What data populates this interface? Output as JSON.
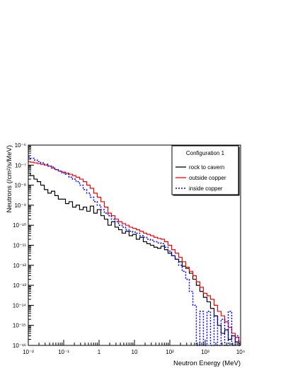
{
  "chart_data": {
    "type": "line",
    "title": "",
    "xlabel": "Neutron Energy (MeV)",
    "ylabel": "Neutrons (/cm²/s/MeV)",
    "xscale": "log",
    "yscale": "log",
    "xlim": [
      0.01,
      10000
    ],
    "ylim": [
      1e-16,
      1e-06
    ],
    "x_tick_labels": [
      "10⁻²",
      "10⁻¹",
      "1",
      "10",
      "10²",
      "10³",
      "10⁴"
    ],
    "y_tick_labels": [
      "10⁻¹⁶",
      "10⁻¹⁵",
      "10⁻¹⁴",
      "10⁻¹³",
      "10⁻¹²",
      "10⁻¹¹",
      "10⁻¹⁰",
      "10⁻⁹",
      "10⁻⁸",
      "10⁻⁷",
      "10⁻⁶"
    ],
    "grid": false,
    "legend": {
      "placement": "top-right",
      "title": "Configuration 1",
      "entries": [
        "rock to cavern",
        "outside copper",
        "inside copper"
      ]
    },
    "series": [
      {
        "name": "rock to cavern",
        "color": "#000000",
        "style": "solid-step",
        "x": [
          0.01,
          0.013,
          0.016,
          0.02,
          0.025,
          0.032,
          0.04,
          0.05,
          0.063,
          0.079,
          0.1,
          0.126,
          0.158,
          0.2,
          0.25,
          0.316,
          0.4,
          0.5,
          0.63,
          0.79,
          1.0,
          1.26,
          1.58,
          2.0,
          2.5,
          3.16,
          4.0,
          5.0,
          6.3,
          7.9,
          10,
          12.6,
          15.8,
          20,
          25,
          31.6,
          40,
          50,
          63,
          79,
          100,
          126,
          158,
          200,
          250,
          316,
          400,
          500,
          630,
          790,
          1000,
          1260,
          1580,
          2000,
          2500,
          3160,
          4000,
          5000,
          6300,
          7900,
          10000
        ],
        "y": [
          4e-08,
          3e-08,
          2e-08,
          1.5e-08,
          1e-08,
          6e-09,
          4e-09,
          5e-09,
          3e-09,
          2e-09,
          2e-09,
          1.2e-09,
          1.5e-09,
          8e-10,
          1e-09,
          6e-10,
          8e-10,
          5e-10,
          9e-10,
          4e-10,
          6e-10,
          3e-10,
          2e-10,
          1e-10,
          1.5e-10,
          8e-11,
          6e-11,
          4e-11,
          5e-11,
          3e-11,
          3.5e-11,
          2e-11,
          2.5e-11,
          1.5e-11,
          1.2e-11,
          1e-11,
          8e-12,
          7e-12,
          9e-12,
          6e-12,
          4e-12,
          3e-12,
          2e-12,
          1.5e-12,
          9e-13,
          7e-13,
          4e-13,
          2e-13,
          1e-13,
          5e-14,
          2.5e-14,
          1.5e-14,
          7e-15,
          3e-15,
          1e-15,
          4e-16,
          6e-16,
          2e-16,
          3e-16,
          1.5e-16,
          1.2e-16
        ]
      },
      {
        "name": "outside copper",
        "color": "#ff0000",
        "style": "solid-step",
        "x": [
          0.01,
          0.013,
          0.016,
          0.02,
          0.025,
          0.032,
          0.04,
          0.05,
          0.063,
          0.079,
          0.1,
          0.126,
          0.158,
          0.2,
          0.25,
          0.316,
          0.4,
          0.5,
          0.63,
          0.79,
          1.0,
          1.26,
          1.58,
          2.0,
          2.5,
          3.16,
          4.0,
          5.0,
          6.3,
          7.9,
          10,
          12.6,
          15.8,
          20,
          25,
          31.6,
          40,
          50,
          63,
          79,
          100,
          126,
          158,
          200,
          250,
          316,
          400,
          500,
          630,
          790,
          1000,
          1260,
          1580,
          2000,
          2500,
          3160,
          4000,
          5000,
          6300,
          7900,
          10000
        ],
        "y": [
          1.5e-07,
          1.4e-07,
          1.3e-07,
          1.2e-07,
          1.1e-07,
          1e-07,
          9e-08,
          7e-08,
          6e-08,
          5e-08,
          4.5e-08,
          4e-08,
          3.5e-08,
          3e-08,
          2.5e-08,
          2e-08,
          1.5e-08,
          1e-08,
          7e-09,
          4e-09,
          2.5e-09,
          1.5e-09,
          8e-10,
          4e-10,
          3e-10,
          2e-10,
          1.5e-10,
          1.2e-10,
          1e-10,
          8e-11,
          7e-11,
          6e-11,
          5e-11,
          4e-11,
          3.5e-11,
          3e-11,
          2.5e-11,
          2.2e-11,
          2e-11,
          1.5e-11,
          1e-11,
          6e-12,
          4e-12,
          2.5e-12,
          1.5e-12,
          8e-13,
          5e-13,
          3e-13,
          1.5e-13,
          8e-14,
          4e-14,
          3e-14,
          2e-14,
          1e-14,
          5e-15,
          3e-15,
          1.5e-15,
          8e-16,
          4e-16,
          2.5e-16,
          1.5e-16
        ]
      },
      {
        "name": "inside copper",
        "color": "#0000ff",
        "style": "dashed-step",
        "x": [
          0.01,
          0.013,
          0.016,
          0.02,
          0.025,
          0.032,
          0.04,
          0.05,
          0.063,
          0.079,
          0.1,
          0.126,
          0.158,
          0.2,
          0.25,
          0.316,
          0.4,
          0.5,
          0.63,
          0.79,
          1.0,
          1.26,
          1.58,
          2.0,
          2.5,
          3.16,
          4.0,
          5.0,
          6.3,
          7.9,
          10,
          12.6,
          15.8,
          20,
          25,
          31.6,
          40,
          50,
          63,
          79,
          100,
          126,
          158,
          200,
          250,
          316,
          400,
          500,
          630,
          790,
          1000,
          1260,
          1580,
          2000,
          2500,
          3160,
          4000,
          5000,
          6300,
          7900,
          10000
        ],
        "y": [
          2.5e-07,
          2.2e-07,
          1.8e-07,
          1.5e-07,
          1.3e-07,
          1.1e-07,
          9e-08,
          8e-08,
          6e-08,
          5e-08,
          4e-08,
          3.5e-08,
          2.5e-08,
          2e-08,
          1.5e-08,
          1e-08,
          6e-09,
          4e-09,
          2.5e-09,
          1.5e-09,
          1e-09,
          6e-10,
          4e-10,
          3e-10,
          2e-10,
          1.5e-10,
          1e-10,
          8e-11,
          6e-11,
          5e-11,
          4.5e-11,
          4e-11,
          3e-11,
          2.5e-11,
          2e-11,
          1.8e-11,
          1.5e-11,
          1.3e-11,
          1.2e-11,
          8e-12,
          5e-12,
          3e-12,
          2e-12,
          1e-12,
          5e-13,
          2e-13,
          5e-14,
          1e-14,
          1e-16,
          5e-15,
          1e-16,
          5e-15,
          1e-16,
          3e-15,
          1e-16,
          2e-15,
          1e-16,
          5e-15,
          1e-16,
          3e-16,
          1e-16
        ]
      }
    ]
  }
}
